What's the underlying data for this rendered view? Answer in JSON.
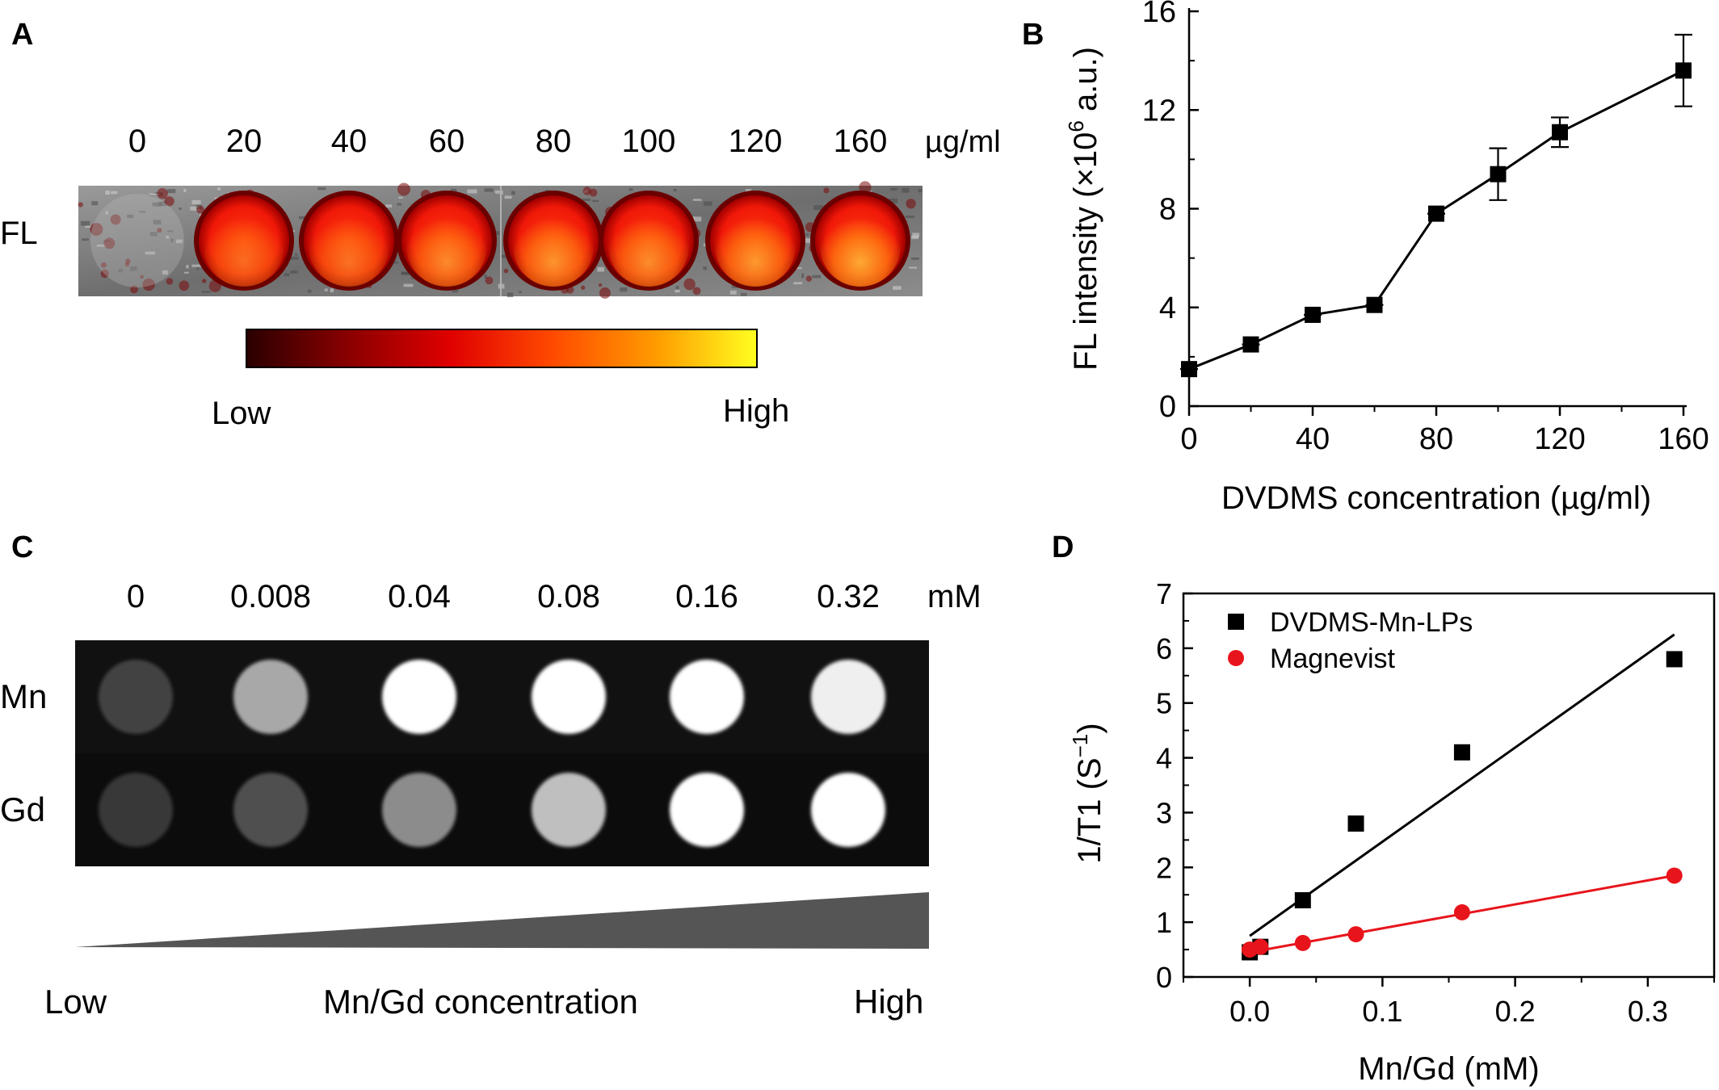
{
  "panelA": {
    "label": "A",
    "row_label": "FL",
    "unit": "µg/ml",
    "concentrations": [
      "0",
      "20",
      "40",
      "60",
      "80",
      "100",
      "120",
      "160"
    ],
    "well_brightness": [
      0,
      0.45,
      0.5,
      0.65,
      0.72,
      0.68,
      0.76,
      0.85
    ],
    "colorbar": {
      "low": "Low",
      "high": "High",
      "stops": [
        "#2a0000",
        "#8a0000",
        "#e00000",
        "#ff4a00",
        "#ff9a00",
        "#ffff20"
      ]
    }
  },
  "panelC": {
    "label": "C",
    "unit": "mM",
    "concentrations": [
      "0",
      "0.008",
      "0.04",
      "0.08",
      "0.16",
      "0.32"
    ],
    "rows": [
      {
        "label": "Mn",
        "brightness": [
          0.18,
          0.62,
          1.0,
          1.0,
          1.0,
          0.93
        ]
      },
      {
        "label": "Gd",
        "brightness": [
          0.13,
          0.24,
          0.5,
          0.72,
          1.0,
          1.0
        ]
      }
    ],
    "wedge": {
      "low": "Low",
      "middle": "Mn/Gd concentration",
      "high": "High"
    }
  },
  "chart_data": [
    {
      "panel": "B",
      "type": "line",
      "title": "",
      "xlabel": "DVDMS concentration (µg/ml)",
      "ylabel_main": "FL intensity (×10",
      "ylabel_sup": "6",
      "ylabel_tail": " a.u.)",
      "xlim": [
        0,
        160
      ],
      "ylim": [
        0,
        16
      ],
      "xticks": [
        0,
        40,
        80,
        120,
        160
      ],
      "yticks": [
        0,
        4,
        8,
        12,
        16
      ],
      "series": [
        {
          "x": [
            0,
            20,
            40,
            60,
            80,
            100,
            120,
            160
          ],
          "y": [
            1.5,
            2.5,
            3.7,
            4.1,
            7.8,
            9.4,
            11.1,
            13.6
          ],
          "err": [
            0.15,
            0.15,
            0.15,
            0.15,
            0.15,
            1.05,
            0.6,
            1.45
          ],
          "color": "#000000",
          "marker": "square"
        }
      ]
    },
    {
      "panel": "D",
      "type": "scatter",
      "title": "",
      "xlabel": "Mn/Gd (mM)",
      "ylabel_main": "1/T1 (S",
      "ylabel_sup": "−1",
      "ylabel_tail": ")",
      "xlim": [
        -0.05,
        0.35
      ],
      "ylim": [
        0,
        7
      ],
      "xticks": [
        0.0,
        0.1,
        0.2,
        0.3
      ],
      "xtick_labels": [
        "0.0",
        "0.1",
        "0.2",
        "0.3"
      ],
      "yticks": [
        0,
        1,
        2,
        3,
        4,
        5,
        6,
        7
      ],
      "legend_position": "top-left",
      "series": [
        {
          "name": "DVDMS-Mn-LPs",
          "marker": "square",
          "color": "#000000",
          "x": [
            0,
            0.008,
            0.04,
            0.08,
            0.16,
            0.32
          ],
          "y": [
            0.45,
            0.55,
            1.4,
            2.8,
            4.1,
            5.8
          ],
          "fit": {
            "x": [
              0,
              0.32
            ],
            "y": [
              0.75,
              6.25
            ]
          }
        },
        {
          "name": "Magnevist",
          "marker": "circle",
          "color": "#e8141c",
          "x": [
            0,
            0.008,
            0.04,
            0.08,
            0.16,
            0.32
          ],
          "y": [
            0.5,
            0.55,
            0.62,
            0.78,
            1.18,
            1.85
          ],
          "fit": {
            "x": [
              0,
              0.32
            ],
            "y": [
              0.45,
              1.85
            ]
          }
        }
      ]
    }
  ]
}
